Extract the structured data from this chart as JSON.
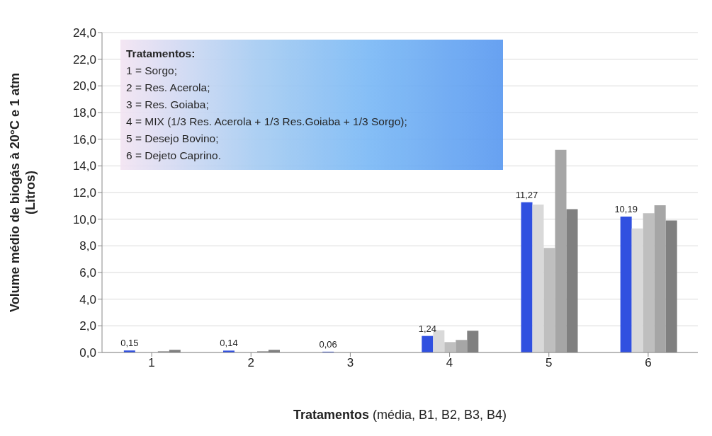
{
  "chart_data": {
    "type": "bar",
    "xlabel": "Tratamentos (média, B1, B2, B3, B4)",
    "ylabel": "Volume médio de biogás à 20°C e 1 atm\n(Litros)",
    "categories": [
      "1",
      "2",
      "3",
      "4",
      "5",
      "6"
    ],
    "series": [
      {
        "color": "#3050e0",
        "values": [
          0.15,
          0.14,
          0.06,
          1.24,
          11.27,
          10.19
        ],
        "value_labels": [
          "0,15",
          "0,14",
          "0,06",
          "1,24",
          "11,27",
          "10,19"
        ]
      },
      {
        "color": "#d9d9d9",
        "values": [
          0.02,
          0.02,
          0,
          1.67,
          11.1,
          9.3
        ]
      },
      {
        "color": "#bfbfbf",
        "values": [
          null,
          null,
          null,
          0.78,
          7.85,
          10.45
        ]
      },
      {
        "color": "#a6a6a6",
        "values": [
          0.1,
          0.1,
          null,
          0.94,
          15.2,
          11.05
        ]
      },
      {
        "color": "#808080",
        "values": [
          0.2,
          0.2,
          0,
          1.63,
          10.75,
          9.9
        ]
      }
    ],
    "ylim": [
      0,
      24
    ],
    "yticks": [
      {
        "value": 0,
        "label": "0,0"
      },
      {
        "value": 2,
        "label": "2,0"
      },
      {
        "value": 4,
        "label": "4,0"
      },
      {
        "value": 6,
        "label": "6,0"
      },
      {
        "value": 8,
        "label": "8,0"
      },
      {
        "value": 10,
        "label": "10,0"
      },
      {
        "value": 12,
        "label": "12,0"
      },
      {
        "value": 14,
        "label": "14,0"
      },
      {
        "value": 16,
        "label": "16,0"
      },
      {
        "value": 18,
        "label": "18,0"
      },
      {
        "value": 20,
        "label": "20,0"
      },
      {
        "value": 22,
        "label": "22,0"
      },
      {
        "value": 24,
        "label": "24,0"
      }
    ],
    "grid": "y",
    "annotations": [
      "Tratamentos:",
      "1 = Sorgo;",
      "2 = Res. Acerola;",
      "3 = Res. Goiaba;",
      "4 = MIX (1/3 Res. Acerola + 1/3 Res.Goiaba + 1/3 Sorgo);",
      "5 = Desejo Bovino;",
      "6 = Dejeto Caprino."
    ]
  }
}
